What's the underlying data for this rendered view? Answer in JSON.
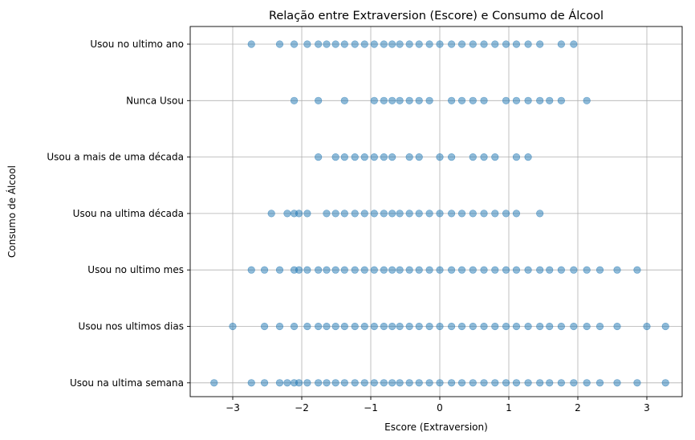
{
  "chart_data": {
    "type": "scatter",
    "title": "Relação entre Extraversion (Escore) e Consumo de Álcool",
    "xlabel": "Escore (Extraversion)",
    "ylabel": "Consumo de Álcool",
    "xlim": [
      -3.55,
      3.55
    ],
    "xticks": [
      -3,
      -2,
      -1,
      0,
      1,
      2,
      3
    ],
    "xtick_labels": [
      "−3",
      "−2",
      "−1",
      "0",
      "1",
      "2",
      "3"
    ],
    "grid": true,
    "color": "#1f77b4",
    "categories": [
      "Usou na ultima semana",
      "Usou nos ultimos dias",
      "Usou no ultimo mes",
      "Usou na ultima década",
      "Usou a mais de uma década",
      "Nunca Usou",
      "Usou no ultimo ano"
    ],
    "series": [
      {
        "category": "Usou na ultima semana",
        "x": [
          -3.27,
          -2.73,
          -2.54,
          -2.32,
          -2.21,
          -2.11,
          -2.04,
          -1.92,
          -1.76,
          -1.64,
          -1.51,
          -1.38,
          -1.23,
          -1.09,
          -0.95,
          -0.81,
          -0.69,
          -0.58,
          -0.44,
          -0.3,
          -0.15,
          0.0,
          0.17,
          0.32,
          0.48,
          0.64,
          0.8,
          0.96,
          1.11,
          1.28,
          1.45,
          1.59,
          1.76,
          1.94,
          2.13,
          2.32,
          2.57,
          2.86,
          3.27
        ]
      },
      {
        "category": "Usou nos ultimos dias",
        "x": [
          -3.0,
          -2.54,
          -2.32,
          -2.11,
          -1.92,
          -1.76,
          -1.64,
          -1.51,
          -1.38,
          -1.23,
          -1.09,
          -0.95,
          -0.81,
          -0.69,
          -0.58,
          -0.44,
          -0.3,
          -0.15,
          0.0,
          0.17,
          0.32,
          0.48,
          0.64,
          0.8,
          0.96,
          1.11,
          1.28,
          1.45,
          1.59,
          1.76,
          1.94,
          2.13,
          2.32,
          2.57,
          3.0,
          3.27
        ]
      },
      {
        "category": "Usou no ultimo mes",
        "x": [
          -2.73,
          -2.54,
          -2.32,
          -2.11,
          -2.04,
          -1.92,
          -1.76,
          -1.64,
          -1.51,
          -1.38,
          -1.23,
          -1.09,
          -0.95,
          -0.81,
          -0.69,
          -0.58,
          -0.44,
          -0.3,
          -0.15,
          0.0,
          0.17,
          0.32,
          0.48,
          0.64,
          0.8,
          0.96,
          1.11,
          1.28,
          1.45,
          1.59,
          1.76,
          1.94,
          2.13,
          2.32,
          2.57,
          2.86
        ]
      },
      {
        "category": "Usou na ultima década",
        "x": [
          -2.44,
          -2.21,
          -2.11,
          -2.04,
          -1.92,
          -1.64,
          -1.51,
          -1.38,
          -1.23,
          -1.09,
          -0.95,
          -0.81,
          -0.69,
          -0.58,
          -0.44,
          -0.3,
          -0.15,
          0.0,
          0.17,
          0.32,
          0.48,
          0.64,
          0.8,
          0.96,
          1.11,
          1.45
        ]
      },
      {
        "category": "Usou a mais de uma década",
        "x": [
          -1.76,
          -1.51,
          -1.38,
          -1.23,
          -1.09,
          -0.95,
          -0.81,
          -0.69,
          -0.44,
          -0.3,
          0.0,
          0.17,
          0.48,
          0.64,
          0.8,
          1.11,
          1.28
        ]
      },
      {
        "category": "Nunca Usou",
        "x": [
          -2.11,
          -1.76,
          -1.38,
          -0.95,
          -0.81,
          -0.69,
          -0.58,
          -0.44,
          -0.3,
          -0.15,
          0.17,
          0.32,
          0.48,
          0.64,
          0.96,
          1.11,
          1.28,
          1.45,
          1.59,
          1.76,
          2.13
        ]
      },
      {
        "category": "Usou no ultimo ano",
        "x": [
          -2.73,
          -2.32,
          -2.11,
          -1.92,
          -1.76,
          -1.64,
          -1.51,
          -1.38,
          -1.23,
          -1.09,
          -0.95,
          -0.81,
          -0.69,
          -0.58,
          -0.44,
          -0.3,
          -0.15,
          0.0,
          0.17,
          0.32,
          0.48,
          0.64,
          0.8,
          0.96,
          1.11,
          1.28,
          1.45,
          1.76,
          1.94
        ]
      }
    ]
  }
}
